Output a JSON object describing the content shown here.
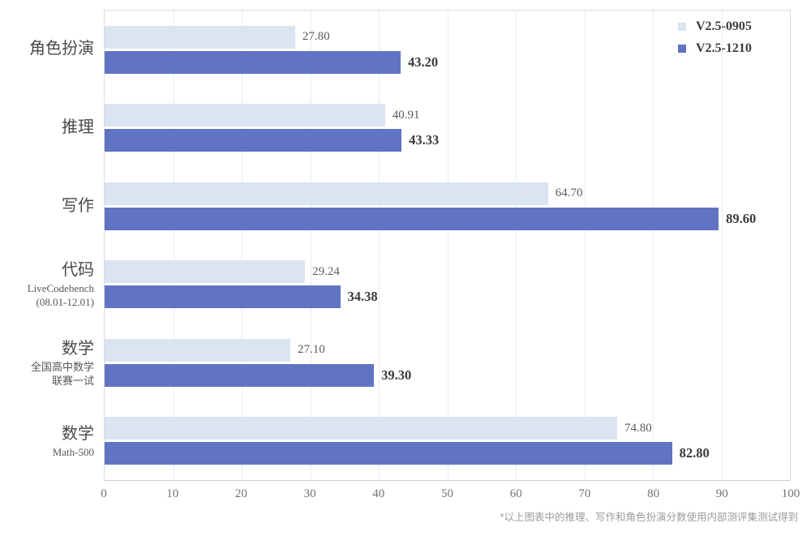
{
  "chart_data": {
    "type": "bar",
    "orientation": "horizontal",
    "categories": [
      {
        "label": "角色扮演",
        "sublines": []
      },
      {
        "label": "推理",
        "sublines": []
      },
      {
        "label": "写作",
        "sublines": []
      },
      {
        "label": "代码",
        "sublines": [
          "LiveCodebench",
          "(08.01-12.01)"
        ]
      },
      {
        "label": "数学",
        "sublines": [
          "全国高中数学",
          "联赛一试"
        ]
      },
      {
        "label": "数学",
        "sublines": [
          "Math-500"
        ]
      }
    ],
    "series": [
      {
        "name": "V2.5-0905",
        "color": "#dbe4f1",
        "values": [
          27.8,
          40.91,
          64.7,
          29.24,
          27.1,
          74.8
        ],
        "value_labels": [
          "27.80",
          "40.91",
          "64.70",
          "29.24",
          "27.10",
          "74.80"
        ]
      },
      {
        "name": "V2.5-1210",
        "color": "#6173c3",
        "values": [
          43.2,
          43.33,
          89.6,
          34.38,
          39.3,
          82.8
        ],
        "value_labels": [
          "43.20",
          "43.33",
          "89.60",
          "34.38",
          "39.30",
          "82.80"
        ]
      }
    ],
    "xlim": [
      0,
      100
    ],
    "xticks": [
      "0",
      "10",
      "20",
      "30",
      "40",
      "50",
      "60",
      "70",
      "80",
      "90",
      "100"
    ],
    "grid": "vertical-dotted",
    "legend_position": "top-right",
    "footnote": "*以上图表中的推理、写作和角色扮演分数使用内部测评集测试得到"
  },
  "colors": {
    "grid": "#ccdaec",
    "plot_border": "#d9dde3",
    "light_value_label": "#5a5a5a",
    "dark_value_label": "#3b3b3b"
  }
}
